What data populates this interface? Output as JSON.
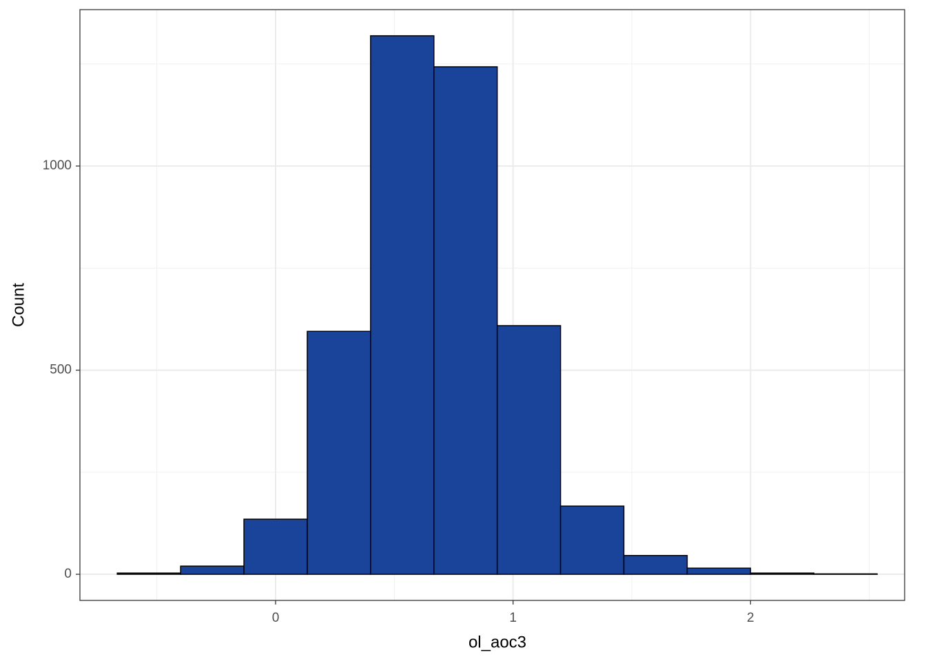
{
  "chart_data": {
    "type": "histogram",
    "x_label": "ol_aoc3",
    "y_label": "Count",
    "bins": [
      -0.6667,
      -0.4,
      -0.1333,
      0.1333,
      0.4,
      0.6667,
      0.9333,
      1.2,
      1.4667,
      1.7333,
      2.0,
      2.2667,
      2.5333
    ],
    "values": [
      3,
      20,
      135,
      595,
      1319,
      1243,
      609,
      167,
      46,
      15,
      3,
      1
    ],
    "color": "#1a4499",
    "xlim": [
      -0.824,
      2.649
    ],
    "ylim": [
      -64,
      1383
    ],
    "xticks": [
      0,
      1,
      2
    ],
    "yticks": [
      0,
      500,
      1000
    ],
    "x_minor_ticks": [
      -0.5,
      0.5,
      1.5,
      2.5
    ],
    "y_minor_ticks": [
      250,
      750,
      1250
    ],
    "grid": true
  }
}
